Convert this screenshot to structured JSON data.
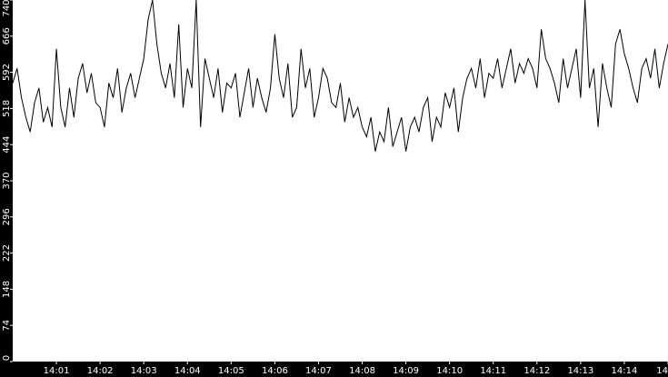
{
  "chart_data": {
    "type": "line",
    "color": "#000000",
    "values": [
      570,
      600,
      540,
      500,
      470,
      530,
      560,
      490,
      520,
      480,
      640,
      520,
      480,
      560,
      500,
      580,
      610,
      550,
      590,
      530,
      520,
      480,
      570,
      540,
      600,
      510,
      560,
      590,
      540,
      580,
      620,
      700,
      740,
      650,
      590,
      560,
      610,
      540,
      690,
      520,
      600,
      560,
      740,
      480,
      620,
      580,
      540,
      600,
      510,
      570,
      560,
      590,
      500,
      550,
      600,
      520,
      580,
      540,
      510,
      560,
      670,
      580,
      540,
      610,
      500,
      520,
      640,
      560,
      600,
      500,
      540,
      600,
      580,
      530,
      520,
      570,
      490,
      540,
      500,
      520,
      480,
      460,
      500,
      430,
      470,
      450,
      520,
      440,
      470,
      500,
      430,
      480,
      500,
      470,
      520,
      540,
      450,
      500,
      480,
      550,
      520,
      560,
      470,
      540,
      580,
      600,
      560,
      620,
      540,
      590,
      580,
      620,
      560,
      600,
      640,
      570,
      610,
      590,
      620,
      600,
      560,
      680,
      620,
      600,
      570,
      530,
      620,
      560,
      600,
      640,
      540,
      740,
      560,
      600,
      480,
      610,
      560,
      520,
      650,
      680,
      630,
      600,
      560,
      530,
      600,
      620,
      580,
      640,
      560,
      610,
      650
    ],
    "xlim": [
      0,
      150
    ],
    "xticks": [
      {
        "value": 10,
        "label": "14:01"
      },
      {
        "value": 20,
        "label": "14:02"
      },
      {
        "value": 30,
        "label": "14:03"
      },
      {
        "value": 40,
        "label": "14:04"
      },
      {
        "value": 50,
        "label": "14:05"
      },
      {
        "value": 60,
        "label": "14:06"
      },
      {
        "value": 70,
        "label": "14:07"
      },
      {
        "value": 80,
        "label": "14:08"
      },
      {
        "value": 90,
        "label": "14:09"
      },
      {
        "value": 100,
        "label": "14:10"
      },
      {
        "value": 110,
        "label": "14:11"
      },
      {
        "value": 120,
        "label": "14:12"
      },
      {
        "value": 130,
        "label": "14:13"
      },
      {
        "value": 140,
        "label": "14:14"
      },
      {
        "value": 150,
        "label": "14"
      }
    ],
    "ylim": [
      0,
      740
    ],
    "yticks": [
      0,
      74,
      148,
      222,
      296,
      370,
      444,
      518,
      592,
      666,
      740
    ]
  }
}
